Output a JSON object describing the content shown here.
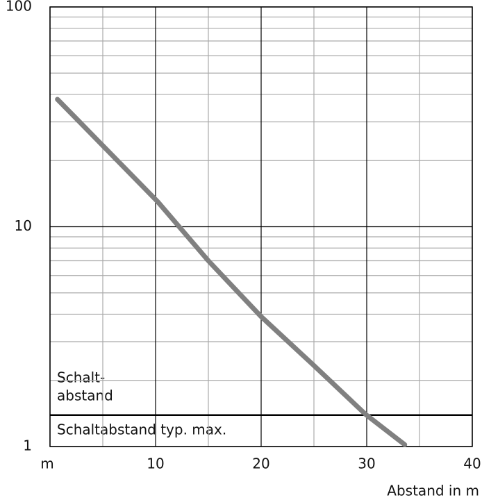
{
  "chart_data": {
    "type": "line",
    "x_label": "Abstand in m",
    "x": [
      0.7,
      2.8,
      10.2,
      15,
      20,
      24.9,
      29.9,
      33.6
    ],
    "series": [
      {
        "color": "#808080",
        "values": [
          38,
          30,
          13,
          7,
          3.9,
          2.36,
          1.4,
          1.02
        ]
      }
    ],
    "xlim": [
      0,
      40
    ],
    "xticks": [
      {
        "value": 0,
        "label": "m"
      },
      10,
      20,
      30,
      40
    ],
    "minor_xticks": [
      5,
      15,
      25,
      35
    ],
    "ylim": [
      1,
      100
    ],
    "yticks": [
      1,
      10,
      100
    ],
    "ylog": true,
    "minor_yticks": [
      2,
      3,
      4,
      5,
      6,
      7,
      8,
      9,
      20,
      30,
      40,
      50,
      60,
      70,
      80,
      90
    ],
    "grid": true,
    "threshold": 1.39,
    "annotations": [
      "Schalt-",
      "abstand",
      "Schaltabstand typ. max."
    ]
  }
}
